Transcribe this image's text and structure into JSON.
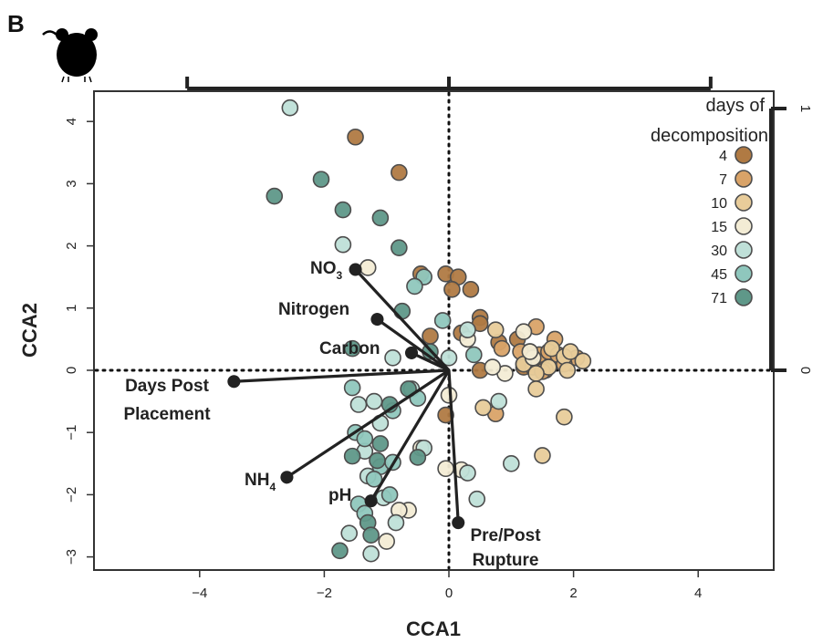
{
  "figure": {
    "panel_letter": "B",
    "icon": "mouse-icon"
  },
  "chart_data": {
    "type": "scatter",
    "title": "",
    "xlabel": "CCA1",
    "ylabel": "CCA2",
    "xlim": [
      -5.3,
      5.3
    ],
    "ylim": [
      -3.2,
      4.4
    ],
    "xticks": [
      -4,
      -2,
      0,
      2,
      4
    ],
    "xtick_labels": [
      "−4",
      "−2",
      "0",
      "2",
      "4"
    ],
    "yticks": [
      -3,
      -2,
      -1,
      0,
      1,
      2,
      3,
      4
    ],
    "ytick_labels": [
      "−3",
      "−2",
      "−1",
      "0",
      "1",
      "2",
      "3",
      "4"
    ],
    "top_axis": {
      "ticks": [
        -4.2,
        0,
        4.2
      ]
    },
    "right_axis": {
      "ticks": [
        0,
        1
      ],
      "tick_labels": [
        "0",
        "1"
      ]
    },
    "reference_lines": {
      "x": 0,
      "y": 0,
      "style": "dotted"
    },
    "legend": {
      "title_line1": "days of",
      "title_line2": "decomposition",
      "position": "top-right"
    },
    "series": [
      {
        "name": "4",
        "color": "#b07a43",
        "points": [
          [
            -1.5,
            3.75
          ],
          [
            -0.8,
            3.18
          ],
          [
            -0.45,
            1.55
          ],
          [
            -0.05,
            1.55
          ],
          [
            0.15,
            1.5
          ],
          [
            0.05,
            1.3
          ],
          [
            0.35,
            1.3
          ],
          [
            -0.3,
            0.55
          ],
          [
            0.5,
            0.85
          ],
          [
            0.5,
            0.75
          ],
          [
            0.5,
            0.0
          ],
          [
            0.8,
            0.45
          ],
          [
            1.1,
            0.5
          ],
          [
            0.2,
            0.6
          ],
          [
            1.2,
            0.1
          ],
          [
            1.5,
            0.2
          ],
          [
            1.2,
            0.05
          ],
          [
            -0.05,
            -0.72
          ]
        ]
      },
      {
        "name": "7",
        "color": "#d9a368",
        "points": [
          [
            1.4,
            0.7
          ],
          [
            1.7,
            0.5
          ],
          [
            1.3,
            0.3
          ],
          [
            0.85,
            0.35
          ],
          [
            1.15,
            0.3
          ],
          [
            1.45,
            0.25
          ],
          [
            1.6,
            0.3
          ],
          [
            1.75,
            0.25
          ],
          [
            2.05,
            0.2
          ],
          [
            1.35,
            0.05
          ],
          [
            1.55,
            0.0
          ],
          [
            0.75,
            -0.7
          ],
          [
            1.5,
            -0.02
          ],
          [
            1.85,
            0.1
          ]
        ]
      },
      {
        "name": "10",
        "color": "#e8cc9a",
        "points": [
          [
            0.75,
            0.65
          ],
          [
            1.65,
            0.35
          ],
          [
            1.85,
            0.22
          ],
          [
            1.95,
            0.3
          ],
          [
            2.15,
            0.15
          ],
          [
            1.9,
            0.0
          ],
          [
            1.6,
            0.05
          ],
          [
            1.4,
            -0.05
          ],
          [
            1.2,
            0.1
          ],
          [
            0.55,
            -0.6
          ],
          [
            1.4,
            -0.3
          ],
          [
            1.85,
            -0.75
          ],
          [
            1.5,
            -1.37
          ]
        ]
      },
      {
        "name": "15",
        "color": "#f3ecd5",
        "points": [
          [
            -1.3,
            1.65
          ],
          [
            0.3,
            0.5
          ],
          [
            1.2,
            0.62
          ],
          [
            0.9,
            -0.05
          ],
          [
            0.7,
            0.05
          ],
          [
            1.35,
            0.2
          ],
          [
            0.0,
            -0.4
          ],
          [
            0.2,
            -1.6
          ],
          [
            -0.05,
            -1.58
          ],
          [
            -0.45,
            -1.25
          ],
          [
            -0.65,
            -2.25
          ],
          [
            -0.8,
            -2.25
          ],
          [
            -1.0,
            -2.75
          ],
          [
            1.3,
            0.3
          ]
        ]
      },
      {
        "name": "30",
        "color": "#bfe0d8",
        "points": [
          [
            -2.55,
            4.22
          ],
          [
            -1.7,
            2.02
          ],
          [
            -0.9,
            0.2
          ],
          [
            -0.6,
            -0.3
          ],
          [
            0.0,
            0.2
          ],
          [
            0.3,
            0.65
          ],
          [
            0.8,
            -0.5
          ],
          [
            -1.45,
            -0.55
          ],
          [
            -1.2,
            -0.5
          ],
          [
            -1.1,
            -0.85
          ],
          [
            -1.35,
            -1.3
          ],
          [
            -1.3,
            -1.7
          ],
          [
            -1.6,
            -2.62
          ],
          [
            -1.25,
            -2.95
          ],
          [
            -0.85,
            -2.45
          ],
          [
            -1.05,
            -2.05
          ],
          [
            0.45,
            -2.07
          ],
          [
            1.0,
            -1.5
          ],
          [
            0.3,
            -1.65
          ],
          [
            -0.4,
            -1.25
          ]
        ]
      },
      {
        "name": "45",
        "color": "#8fc7bd",
        "points": [
          [
            -0.4,
            1.5
          ],
          [
            -0.55,
            1.35
          ],
          [
            -0.1,
            0.8
          ],
          [
            0.4,
            0.25
          ],
          [
            -1.55,
            -0.28
          ],
          [
            -0.5,
            -0.45
          ],
          [
            -0.9,
            -0.65
          ],
          [
            -1.5,
            -1.0
          ],
          [
            -1.35,
            -1.1
          ],
          [
            -1.1,
            -1.55
          ],
          [
            -1.2,
            -1.75
          ],
          [
            -1.45,
            -2.15
          ],
          [
            -1.35,
            -2.3
          ],
          [
            -0.95,
            -2.0
          ],
          [
            -0.9,
            -1.48
          ]
        ]
      },
      {
        "name": "71",
        "color": "#5f9889",
        "points": [
          [
            -2.8,
            2.8
          ],
          [
            -2.05,
            3.07
          ],
          [
            -1.7,
            2.58
          ],
          [
            -1.1,
            2.45
          ],
          [
            -0.8,
            1.97
          ],
          [
            -0.75,
            0.95
          ],
          [
            -1.55,
            0.35
          ],
          [
            -0.3,
            0.3
          ],
          [
            -0.65,
            -0.3
          ],
          [
            -0.95,
            -0.55
          ],
          [
            -1.1,
            -1.18
          ],
          [
            -1.15,
            -1.45
          ],
          [
            -1.55,
            -1.38
          ],
          [
            -1.3,
            -2.45
          ],
          [
            -1.25,
            -2.65
          ],
          [
            -1.75,
            -2.9
          ],
          [
            -0.5,
            -1.4
          ]
        ]
      }
    ],
    "vectors": [
      {
        "label": "Days Post Placement",
        "x": -3.45,
        "y": -0.18,
        "label_lines": [
          "Days Post",
          "Placement"
        ]
      },
      {
        "label": "NO3",
        "x": -1.5,
        "y": 1.62,
        "base": "NO",
        "sub": "3"
      },
      {
        "label": "Nitrogen",
        "x": -1.15,
        "y": 0.82
      },
      {
        "label": "Carbon",
        "x": -0.6,
        "y": 0.28
      },
      {
        "label": "NH4",
        "x": -2.6,
        "y": -1.72,
        "base": "NH",
        "sub": "4"
      },
      {
        "label": "pH",
        "x": -1.25,
        "y": -2.1
      },
      {
        "label": "Pre/Post Rupture",
        "x": 0.15,
        "y": -2.45,
        "label_lines": [
          "Pre/Post",
          "Rupture"
        ]
      }
    ]
  }
}
